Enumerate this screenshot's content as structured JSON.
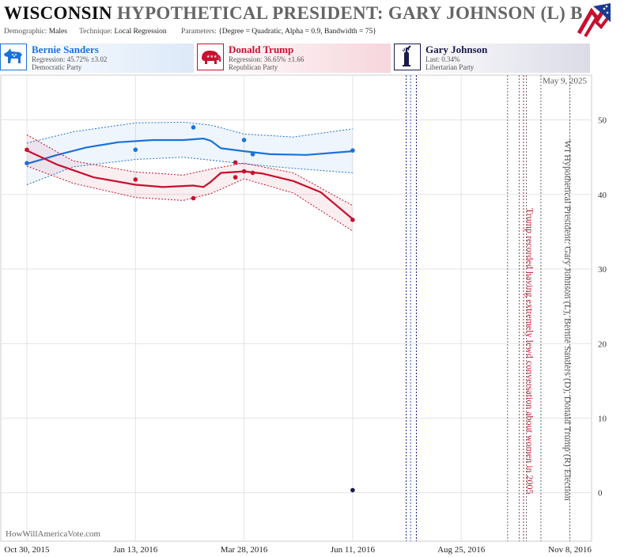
{
  "header": {
    "state": "WISCONSIN",
    "title_rest": "HYPOTHETICAL PRESIDENT: GARY JOHNSON (L) B",
    "demographic_label": "Demographic:",
    "demographic_value": "Males",
    "technique_label": "Technique:",
    "technique_value": "Local Regression",
    "parameters_label": "Parameters:",
    "parameters_value": "{Degree = Quadratic, Alpha = 0.9, Bandwidth = 75}"
  },
  "candidates": [
    {
      "name": "Bernie Sanders",
      "stat": "Regression: 45.72% ±3.02",
      "party": "Democratic Party",
      "color": "#1a73d9"
    },
    {
      "name": "Donald Trump",
      "stat": "Regression: 36.65% ±1.66",
      "party": "Republican Party",
      "color": "#c8102e"
    },
    {
      "name": "Gary Johnson",
      "stat": "Last: 0.34%",
      "party": "Libertarian Party",
      "color": "#1a1a4d"
    }
  ],
  "chart_data": {
    "type": "line",
    "x_ticks": [
      "Oct 30, 2015",
      "Jan 13, 2016",
      "Mar 28, 2016",
      "Jun 11, 2016",
      "Aug 25, 2016",
      "Nov 8, 2016"
    ],
    "y_ticks": [
      "0",
      "10",
      "20",
      "30",
      "40",
      "50"
    ],
    "ylim": [
      -6.5,
      56
    ],
    "x_range": [
      "2015-10-12",
      "2016-11-23"
    ],
    "date_label": "May 9, 2025",
    "watermark": "HowWillAmericaVote.com",
    "right_label": "WI Hypothetical President: Gary Johnson (L), Bernie Sanders (D), Donald Trump (R) Election",
    "series": [
      {
        "name": "Bernie Sanders",
        "color": "#1a73d9",
        "points": [
          [
            "2015-10-30",
            44.2
          ],
          [
            "2016-01-13",
            46.0
          ],
          [
            "2016-02-22",
            49.0
          ],
          [
            "2016-03-28",
            47.3
          ],
          [
            "2016-04-03",
            45.4
          ],
          [
            "2016-06-11",
            45.9
          ]
        ],
        "trend": [
          [
            "2015-10-30",
            44.1
          ],
          [
            "2015-11-20",
            45.3
          ],
          [
            "2015-12-10",
            46.3
          ],
          [
            "2016-01-01",
            47.0
          ],
          [
            "2016-01-25",
            47.3
          ],
          [
            "2016-02-15",
            47.3
          ],
          [
            "2016-02-29",
            47.5
          ],
          [
            "2016-03-05",
            47.2
          ],
          [
            "2016-03-12",
            46.2
          ],
          [
            "2016-03-28",
            45.8
          ],
          [
            "2016-04-15",
            45.4
          ],
          [
            "2016-05-10",
            45.3
          ],
          [
            "2016-06-11",
            45.8
          ]
        ],
        "band_upper": [
          [
            "2015-10-30",
            46.9
          ],
          [
            "2015-12-01",
            48.4
          ],
          [
            "2016-01-13",
            49.6
          ],
          [
            "2016-02-15",
            49.7
          ],
          [
            "2016-03-05",
            49.3
          ],
          [
            "2016-03-28",
            48.1
          ],
          [
            "2016-05-01",
            47.7
          ],
          [
            "2016-06-11",
            48.8
          ]
        ],
        "band_lower": [
          [
            "2015-10-30",
            41.3
          ],
          [
            "2015-12-01",
            43.7
          ],
          [
            "2016-01-13",
            44.7
          ],
          [
            "2016-02-15",
            45.0
          ],
          [
            "2016-03-05",
            44.6
          ],
          [
            "2016-03-28",
            44.1
          ],
          [
            "2016-05-01",
            43.5
          ],
          [
            "2016-06-11",
            42.9
          ]
        ]
      },
      {
        "name": "Donald Trump",
        "color": "#c8102e",
        "points": [
          [
            "2015-10-30",
            46.0
          ],
          [
            "2016-01-13",
            42.0
          ],
          [
            "2016-02-22",
            39.5
          ],
          [
            "2016-03-22",
            44.3
          ],
          [
            "2016-03-22",
            42.3
          ],
          [
            "2016-03-28",
            43.1
          ],
          [
            "2016-04-03",
            42.9
          ],
          [
            "2016-06-11",
            36.6
          ]
        ],
        "trend": [
          [
            "2015-10-30",
            45.9
          ],
          [
            "2015-11-20",
            44.0
          ],
          [
            "2015-12-15",
            42.3
          ],
          [
            "2016-01-13",
            41.3
          ],
          [
            "2016-02-01",
            41.0
          ],
          [
            "2016-02-22",
            41.2
          ],
          [
            "2016-02-29",
            41.0
          ],
          [
            "2016-03-05",
            41.7
          ],
          [
            "2016-03-12",
            42.9
          ],
          [
            "2016-03-28",
            43.1
          ],
          [
            "2016-04-10",
            42.8
          ],
          [
            "2016-05-01",
            41.8
          ],
          [
            "2016-05-20",
            40.3
          ],
          [
            "2016-06-11",
            36.7
          ]
        ],
        "band_upper": [
          [
            "2015-10-30",
            48.0
          ],
          [
            "2015-12-01",
            44.5
          ],
          [
            "2016-01-13",
            43.0
          ],
          [
            "2016-02-15",
            42.6
          ],
          [
            "2016-03-05",
            43.4
          ],
          [
            "2016-03-28",
            44.2
          ],
          [
            "2016-05-01",
            42.9
          ],
          [
            "2016-06-11",
            38.5
          ]
        ],
        "band_lower": [
          [
            "2015-10-30",
            43.8
          ],
          [
            "2015-12-01",
            41.5
          ],
          [
            "2016-01-13",
            39.6
          ],
          [
            "2016-02-15",
            39.2
          ],
          [
            "2016-03-05",
            40.1
          ],
          [
            "2016-03-28",
            42.1
          ],
          [
            "2016-05-01",
            40.2
          ],
          [
            "2016-06-11",
            35.1
          ]
        ]
      },
      {
        "name": "Gary Johnson",
        "color": "#1a1a4d",
        "points": [
          [
            "2016-06-11",
            0.34
          ]
        ]
      }
    ],
    "events": [
      {
        "date": "2016-07-18",
        "color": "#1a1a8f",
        "style": "dotted"
      },
      {
        "date": "2016-07-21",
        "color": "#3355cc",
        "style": "dotted"
      },
      {
        "date": "2016-07-25",
        "color": "#1a1a8f",
        "style": "dotted"
      },
      {
        "date": "2016-09-26",
        "color": "#666666",
        "style": "dotted"
      },
      {
        "date": "2016-10-04",
        "color": "#666666",
        "style": "dotted"
      },
      {
        "date": "2016-10-07",
        "color": "#c8102e",
        "style": "dotted",
        "label": "Trump recorded having extremely lewd conversation about women in 2005"
      },
      {
        "date": "2016-10-09",
        "color": "#666666",
        "style": "dotted"
      },
      {
        "date": "2016-10-19",
        "color": "#666666",
        "style": "dotted"
      },
      {
        "date": "2016-11-08",
        "color": "#666666",
        "style": "dotted"
      }
    ]
  }
}
